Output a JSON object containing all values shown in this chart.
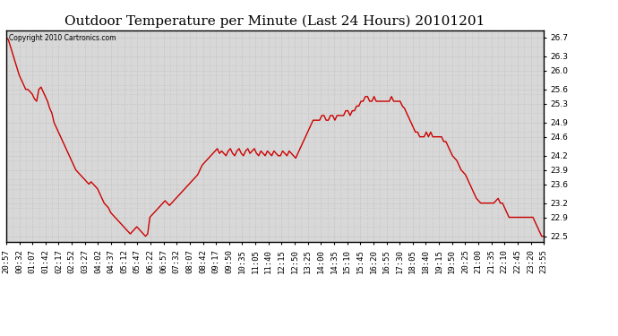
{
  "title": "Outdoor Temperature per Minute (Last 24 Hours) 20101201",
  "copyright_text": "Copyright 2010 Cartronics.com",
  "line_color": "#cc0000",
  "background_color": "#d8d8d8",
  "grid_color": "#bbbbbb",
  "yticks": [
    22.5,
    22.9,
    23.2,
    23.6,
    23.9,
    24.2,
    24.6,
    24.9,
    25.3,
    25.6,
    26.0,
    26.3,
    26.7
  ],
  "ylim": [
    22.38,
    26.85
  ],
  "xtick_labels": [
    "20:57",
    "00:32",
    "01:07",
    "01:42",
    "02:17",
    "02:52",
    "03:27",
    "04:02",
    "04:37",
    "05:12",
    "05:47",
    "06:22",
    "06:57",
    "07:32",
    "08:07",
    "08:42",
    "09:17",
    "09:50",
    "10:35",
    "11:05",
    "11:40",
    "12:15",
    "12:50",
    "13:25",
    "14:00",
    "14:35",
    "15:10",
    "15:45",
    "16:20",
    "16:55",
    "17:30",
    "18:05",
    "18:40",
    "19:15",
    "19:50",
    "20:25",
    "21:00",
    "21:35",
    "22:10",
    "22:45",
    "23:20",
    "23:55"
  ],
  "title_fontsize": 11,
  "tick_fontsize": 6.5,
  "line_width": 1.0,
  "data_y": [
    26.7,
    26.65,
    26.5,
    26.35,
    26.2,
    26.05,
    25.9,
    25.8,
    25.7,
    25.6,
    25.6,
    25.55,
    25.5,
    25.4,
    25.35,
    25.6,
    25.65,
    25.55,
    25.45,
    25.35,
    25.2,
    25.1,
    24.9,
    24.8,
    24.7,
    24.6,
    24.5,
    24.4,
    24.3,
    24.2,
    24.1,
    24.0,
    23.9,
    23.85,
    23.8,
    23.75,
    23.7,
    23.65,
    23.6,
    23.65,
    23.6,
    23.55,
    23.5,
    23.4,
    23.3,
    23.2,
    23.15,
    23.1,
    23.0,
    22.95,
    22.9,
    22.85,
    22.8,
    22.75,
    22.7,
    22.65,
    22.6,
    22.55,
    22.6,
    22.65,
    22.7,
    22.65,
    22.6,
    22.55,
    22.5,
    22.55,
    22.9,
    22.95,
    23.0,
    23.05,
    23.1,
    23.15,
    23.2,
    23.25,
    23.2,
    23.15,
    23.2,
    23.25,
    23.3,
    23.35,
    23.4,
    23.45,
    23.5,
    23.55,
    23.6,
    23.65,
    23.7,
    23.75,
    23.8,
    23.9,
    24.0,
    24.05,
    24.1,
    24.15,
    24.2,
    24.25,
    24.3,
    24.35,
    24.25,
    24.3,
    24.25,
    24.2,
    24.3,
    24.35,
    24.25,
    24.2,
    24.3,
    24.35,
    24.25,
    24.2,
    24.3,
    24.35,
    24.25,
    24.3,
    24.35,
    24.25,
    24.2,
    24.3,
    24.25,
    24.2,
    24.3,
    24.25,
    24.2,
    24.3,
    24.25,
    24.2,
    24.2,
    24.3,
    24.25,
    24.2,
    24.3,
    24.25,
    24.2,
    24.15,
    24.25,
    24.35,
    24.45,
    24.55,
    24.65,
    24.75,
    24.85,
    24.95,
    24.95,
    24.95,
    24.95,
    25.05,
    25.05,
    24.95,
    24.95,
    25.05,
    25.05,
    24.95,
    25.05,
    25.05,
    25.05,
    25.05,
    25.15,
    25.15,
    25.05,
    25.15,
    25.15,
    25.25,
    25.25,
    25.35,
    25.35,
    25.45,
    25.45,
    25.35,
    25.35,
    25.45,
    25.35,
    25.35,
    25.35,
    25.35,
    25.35,
    25.35,
    25.35,
    25.45,
    25.35,
    25.35,
    25.35,
    25.35,
    25.25,
    25.2,
    25.1,
    25.0,
    24.9,
    24.8,
    24.7,
    24.7,
    24.6,
    24.6,
    24.6,
    24.7,
    24.6,
    24.7,
    24.6,
    24.6,
    24.6,
    24.6,
    24.6,
    24.5,
    24.5,
    24.4,
    24.3,
    24.2,
    24.15,
    24.1,
    24.0,
    23.9,
    23.85,
    23.8,
    23.7,
    23.6,
    23.5,
    23.4,
    23.3,
    23.25,
    23.2,
    23.2,
    23.2,
    23.2,
    23.2,
    23.2,
    23.2,
    23.25,
    23.3,
    23.2,
    23.2,
    23.1,
    23.0,
    22.9,
    22.9,
    22.9,
    22.9,
    22.9,
    22.9,
    22.9,
    22.9,
    22.9,
    22.9,
    22.9,
    22.9,
    22.8,
    22.7,
    22.6,
    22.5,
    22.5
  ]
}
